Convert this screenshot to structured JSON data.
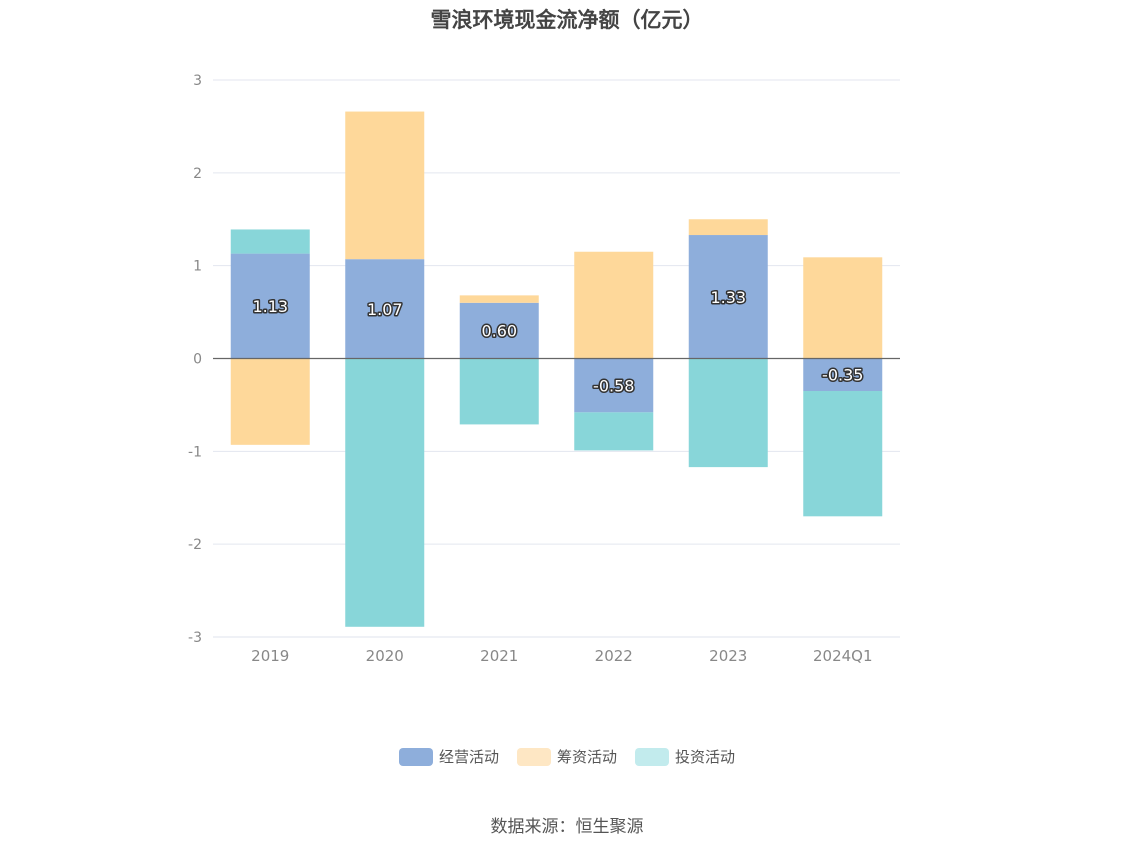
{
  "chart_data": {
    "type": "bar",
    "stacked": true,
    "title": "雪浪环境现金流净额（亿元）",
    "categories": [
      "2019",
      "2020",
      "2021",
      "2022",
      "2023",
      "2024Q1"
    ],
    "ylim": [
      -3,
      3
    ],
    "yticks": [
      3,
      2,
      1,
      0,
      -1,
      -2,
      -3
    ],
    "grid": true,
    "legend_position": "bottom",
    "series": [
      {
        "name": "经营活动",
        "color": "#8eaedb",
        "values": [
          1.13,
          1.07,
          0.6,
          -0.58,
          1.33,
          -0.35
        ],
        "labels": [
          "1.13",
          "1.07",
          "0.60",
          "-0.58",
          "1.33",
          "-0.35"
        ]
      },
      {
        "name": "筹资活动",
        "color": "#fed89a",
        "values": [
          -0.93,
          1.59,
          0.08,
          1.15,
          0.17,
          1.09
        ]
      },
      {
        "name": "投资活动",
        "color": "#88d6d9",
        "values": [
          0.26,
          -2.89,
          -0.71,
          -0.41,
          -1.17,
          -1.35
        ]
      }
    ]
  },
  "legend": {
    "item0": "经营活动",
    "item1": "筹资活动",
    "item2": "投资活动",
    "color0": "#8eaedb",
    "color1": "#fee7c4",
    "color2": "#c2ebed"
  },
  "source": "数据来源：恒生聚源"
}
